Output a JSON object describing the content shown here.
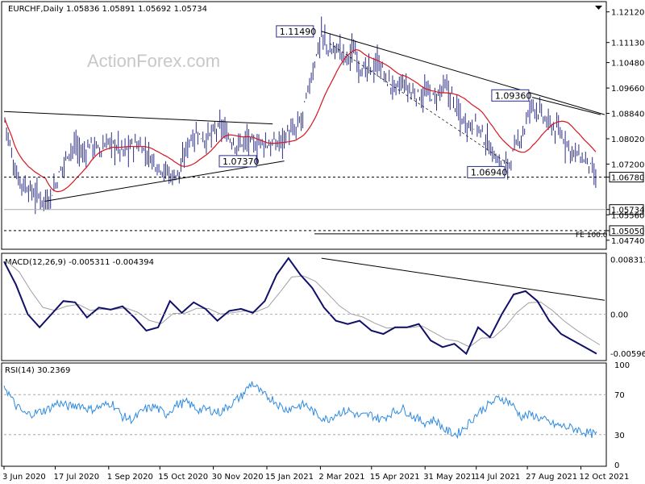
{
  "chart_data": {
    "type": "line",
    "symbol_header": "EURCHF,Daily  1.05836 1.05891 1.05692 1.05734",
    "watermark": "ActionForex.com",
    "colors": {
      "price_bars": "#2b2d86",
      "moving_average": "#d6161e",
      "macd_line": "#101068",
      "macd_signal": "#a0a0a0",
      "rsi": "#2f8be0",
      "trendline": "#000000",
      "level_dashed": "#000000",
      "current_price_line": "#a9a9a9",
      "grid_border": "#000000"
    },
    "x_tick_labels": [
      "3 Jun 2020",
      "17 Jul 2020",
      "1 Sep 2020",
      "15 Oct 2020",
      "30 Nov 2020",
      "15 Jan 2021",
      "2 Mar 2021",
      "15 Apr 2021",
      "31 May 2021",
      "14 Jul 2021",
      "27 Aug 2021",
      "12 Oct 2021"
    ],
    "price_pane": {
      "y_range": [
        1.045,
        1.124
      ],
      "y_ticks": [
        "1.12120",
        "1.11130",
        "1.10480",
        "1.09660",
        "1.08840",
        "1.08020",
        "1.07200",
        "1.06780",
        "1.05734",
        "1.05560",
        "1.05050",
        "1.04740"
      ],
      "boxed_levels": [
        "1.06780",
        "1.05734",
        "1.05050"
      ],
      "annotations": [
        {
          "label": "1.11490",
          "value": 1.1149,
          "date": "3 Mar 2021"
        },
        {
          "label": "1.09360",
          "value": 1.0936,
          "date": "31 Aug 2021"
        },
        {
          "label": "1.06940",
          "value": 1.0694,
          "date": "6 Aug 2021"
        },
        {
          "label": "1.07370",
          "value": 1.0737,
          "date": "18 Dec 2020"
        }
      ],
      "fe_label": "FE 100.0",
      "horizontal_levels": [
        {
          "value": 1.0678,
          "style": "dashed"
        },
        {
          "value": 1.05734,
          "style": "solid-gray"
        },
        {
          "value": 1.0505,
          "style": "dashed"
        }
      ],
      "ohlc_samples": [
        [
          "3 Jun 2020",
          1.088
        ],
        [
          "8 Jun 2020",
          1.078
        ],
        [
          "12 Jun 2020",
          1.07
        ],
        [
          "18 Jun 2020",
          1.066
        ],
        [
          "24 Jun 2020",
          1.064
        ],
        [
          "30 Jun 2020",
          1.062
        ],
        [
          "6 Jul 2020",
          1.061
        ],
        [
          "10 Jul 2020",
          1.06
        ],
        [
          "16 Jul 2020",
          1.064
        ],
        [
          "22 Jul 2020",
          1.07
        ],
        [
          "28 Jul 2020",
          1.076
        ],
        [
          "3 Aug 2020",
          1.078
        ],
        [
          "10 Aug 2020",
          1.075
        ],
        [
          "17 Aug 2020",
          1.079
        ],
        [
          "24 Aug 2020",
          1.076
        ],
        [
          "31 Aug 2020",
          1.079
        ],
        [
          "7 Sep 2020",
          1.078
        ],
        [
          "14 Sep 2020",
          1.076
        ],
        [
          "21 Sep 2020",
          1.078
        ],
        [
          "28 Sep 2020",
          1.078
        ],
        [
          "5 Oct 2020",
          1.075
        ],
        [
          "12 Oct 2020",
          1.072
        ],
        [
          "19 Oct 2020",
          1.07
        ],
        [
          "26 Oct 2020",
          1.068
        ],
        [
          "2 Nov 2020",
          1.07
        ],
        [
          "9 Nov 2020",
          1.08
        ],
        [
          "16 Nov 2020",
          1.082
        ],
        [
          "23 Nov 2020",
          1.08
        ],
        [
          "30 Nov 2020",
          1.082
        ],
        [
          "7 Dec 2020",
          1.084
        ],
        [
          "14 Dec 2020",
          1.08
        ],
        [
          "21 Dec 2020",
          1.078
        ],
        [
          "28 Dec 2020",
          1.08
        ],
        [
          "4 Jan 2021",
          1.078
        ],
        [
          "11 Jan 2021",
          1.079
        ],
        [
          "18 Jan 2021",
          1.078
        ],
        [
          "25 Jan 2021",
          1.079
        ],
        [
          "1 Feb 2021",
          1.082
        ],
        [
          "8 Feb 2021",
          1.082
        ],
        [
          "15 Feb 2021",
          1.088
        ],
        [
          "22 Feb 2021",
          1.1
        ],
        [
          "3 Mar 2021",
          1.114
        ],
        [
          "10 Mar 2021",
          1.108
        ],
        [
          "17 Mar 2021",
          1.11
        ],
        [
          "24 Mar 2021",
          1.106
        ],
        [
          "31 Mar 2021",
          1.109
        ],
        [
          "7 Apr 2021",
          1.102
        ],
        [
          "14 Apr 2021",
          1.102
        ],
        [
          "21 Apr 2021",
          1.105
        ],
        [
          "28 Apr 2021",
          1.099
        ],
        [
          "5 May 2021",
          1.096
        ],
        [
          "12 May 2021",
          1.098
        ],
        [
          "19 May 2021",
          1.095
        ],
        [
          "26 May 2021",
          1.094
        ],
        [
          "2 Jun 2021",
          1.095
        ],
        [
          "9 Jun 2021",
          1.093
        ],
        [
          "16 Jun 2021",
          1.097
        ],
        [
          "23 Jun 2021",
          1.094
        ],
        [
          "30 Jun 2021",
          1.087
        ],
        [
          "7 Jul 2021",
          1.085
        ],
        [
          "14 Jul 2021",
          1.085
        ],
        [
          "21 Jul 2021",
          1.08
        ],
        [
          "28 Jul 2021",
          1.076
        ],
        [
          "4 Aug 2021",
          1.071
        ],
        [
          "11 Aug 2021",
          1.072
        ],
        [
          "18 Aug 2021",
          1.078
        ],
        [
          "25 Aug 2021",
          1.084
        ],
        [
          "31 Aug 2021",
          1.092
        ],
        [
          "7 Sep 2021",
          1.088
        ],
        [
          "14 Sep 2021",
          1.085
        ],
        [
          "21 Sep 2021",
          1.083
        ],
        [
          "28 Sep 2021",
          1.08
        ],
        [
          "5 Oct 2021",
          1.076
        ],
        [
          "12 Oct 2021",
          1.074
        ],
        [
          "19 Oct 2021",
          1.072
        ],
        [
          "25 Oct 2021",
          1.066
        ],
        [
          "29 Oct 2021",
          1.0573
        ]
      ]
    },
    "macd_pane": {
      "title": "MACD(12,26,9) -0.005311 -0.004394",
      "y_range": [
        -0.0068,
        0.009
      ],
      "y_ticks": [
        "0.008313",
        "0.00",
        "-0.00596"
      ],
      "macd_samples": [
        0.008,
        0.0045,
        0.0,
        -0.002,
        0.0,
        0.002,
        0.0018,
        -0.0005,
        0.001,
        0.0007,
        0.0012,
        -0.0005,
        -0.0025,
        -0.002,
        0.002,
        0.0002,
        0.0018,
        0.0008,
        -0.001,
        0.0005,
        0.0008,
        0.0002,
        0.002,
        0.006,
        0.0085,
        0.006,
        0.004,
        0.001,
        -0.001,
        -0.0015,
        -0.001,
        -0.0025,
        -0.003,
        -0.002,
        -0.002,
        -0.0015,
        -0.004,
        -0.005,
        -0.0045,
        -0.006,
        -0.002,
        -0.0035,
        0.0,
        0.003,
        0.0035,
        0.002,
        -0.001,
        -0.003,
        -0.004,
        -0.005,
        -0.006
      ]
    },
    "rsi_pane": {
      "title": "RSI(14) 30.2369",
      "y_range": [
        0,
        100
      ],
      "y_ticks": [
        "100",
        "70",
        "30",
        "0"
      ],
      "rsi_samples": [
        80,
        60,
        50,
        52,
        55,
        62,
        58,
        60,
        55,
        58,
        62,
        48,
        45,
        55,
        58,
        50,
        60,
        62,
        55,
        55,
        52,
        60,
        68,
        82,
        70,
        65,
        55,
        58,
        60,
        50,
        45,
        52,
        54,
        48,
        50,
        45,
        52,
        56,
        48,
        42,
        45,
        34,
        30,
        40,
        52,
        60,
        67,
        62,
        48,
        50,
        45,
        40,
        38,
        36,
        32,
        30
      ]
    }
  }
}
